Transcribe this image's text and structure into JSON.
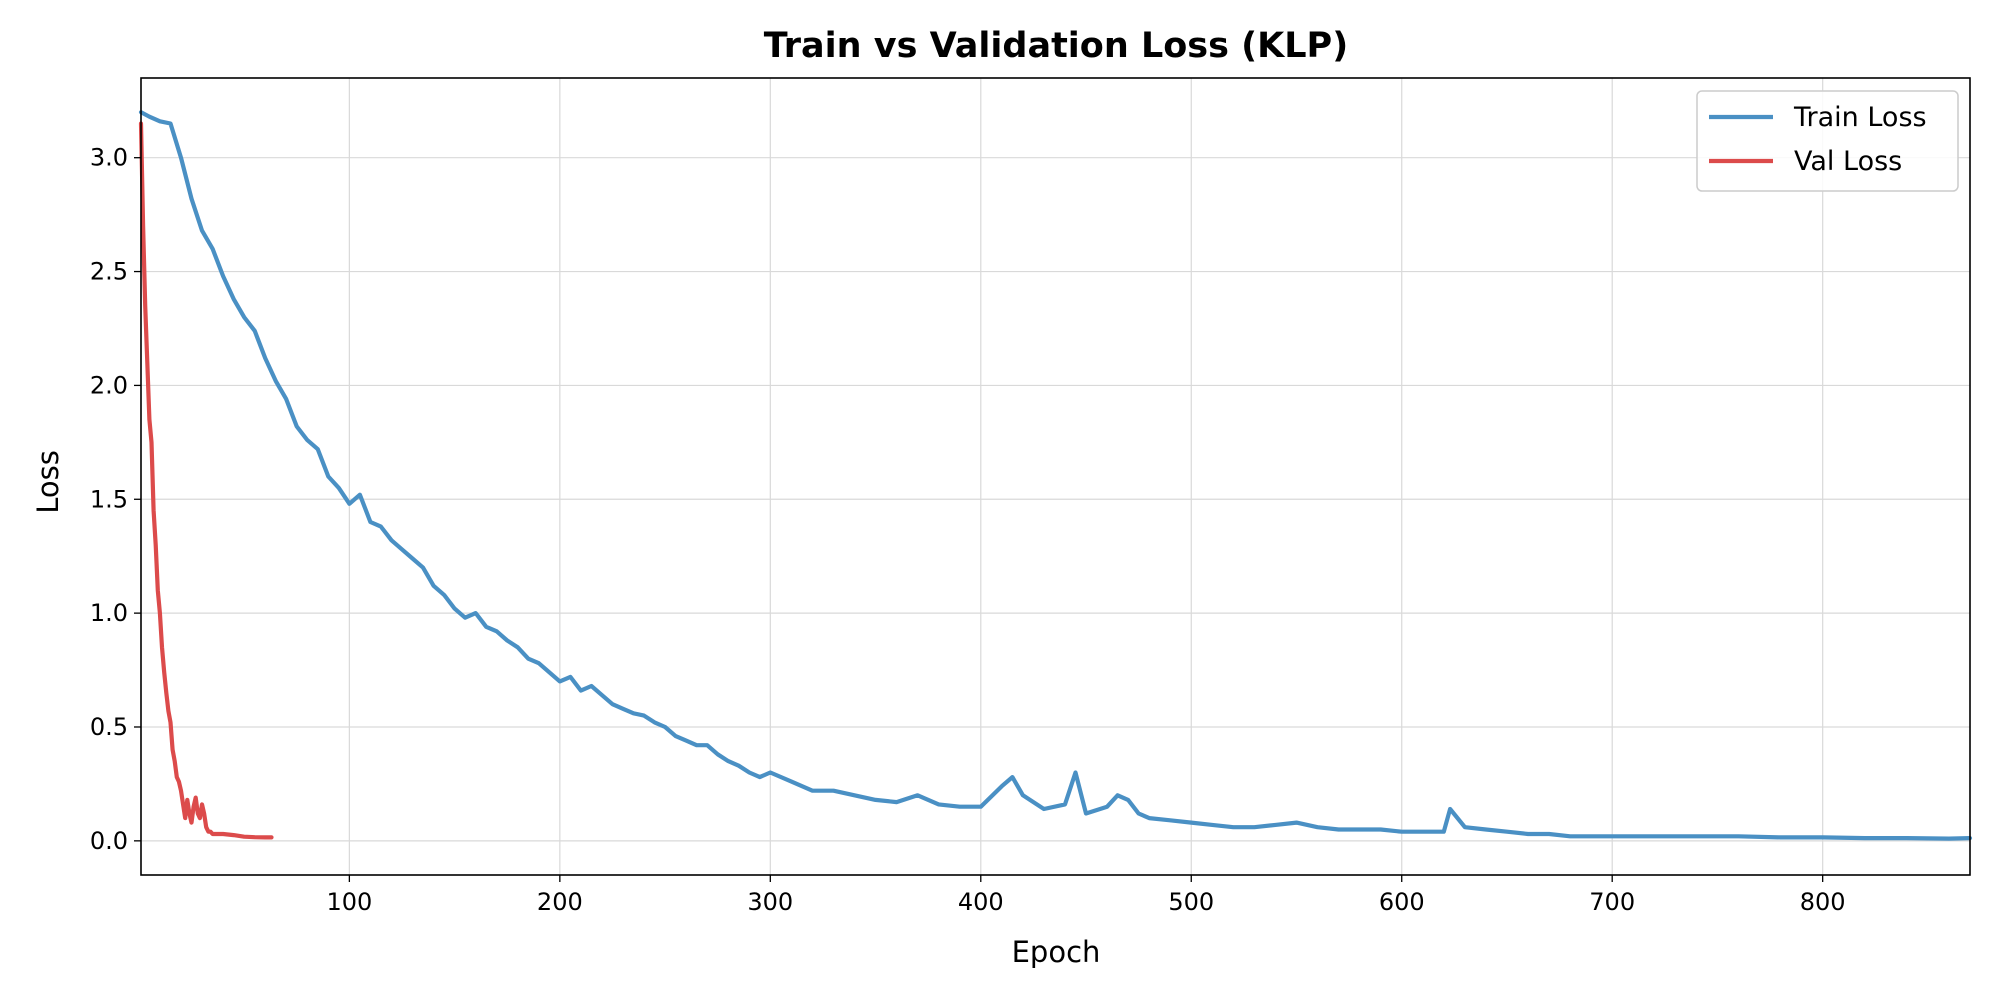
{
  "chart_data": {
    "type": "line",
    "title": "Train vs Validation Loss (KLP)",
    "xlabel": "Epoch",
    "ylabel": "Loss",
    "xlim": [
      1,
      870
    ],
    "ylim": [
      -0.15,
      3.35
    ],
    "xticks": [
      100,
      200,
      300,
      400,
      500,
      600,
      700,
      800
    ],
    "yticks": [
      0.0,
      0.5,
      1.0,
      1.5,
      2.0,
      2.5,
      3.0
    ],
    "xtick_labels": [
      "100",
      "200",
      "300",
      "400",
      "500",
      "600",
      "700",
      "800"
    ],
    "ytick_labels": [
      "0.0",
      "0.5",
      "1.0",
      "1.5",
      "2.0",
      "2.5",
      "3.0"
    ],
    "grid": true,
    "legend_position": "top-right",
    "series": [
      {
        "name": "Train Loss",
        "color": "#4a90c4",
        "x": [
          1,
          5,
          10,
          15,
          20,
          25,
          30,
          35,
          40,
          45,
          50,
          55,
          60,
          65,
          70,
          75,
          80,
          85,
          90,
          95,
          100,
          105,
          110,
          115,
          120,
          125,
          130,
          135,
          140,
          145,
          150,
          155,
          160,
          165,
          170,
          175,
          180,
          185,
          190,
          195,
          200,
          205,
          210,
          215,
          220,
          225,
          230,
          235,
          240,
          245,
          250,
          255,
          260,
          265,
          270,
          275,
          280,
          285,
          290,
          295,
          300,
          310,
          320,
          330,
          340,
          350,
          360,
          370,
          380,
          390,
          400,
          410,
          415,
          420,
          430,
          440,
          445,
          450,
          460,
          465,
          470,
          475,
          480,
          490,
          500,
          510,
          520,
          530,
          540,
          550,
          560,
          570,
          580,
          590,
          600,
          610,
          620,
          623,
          630,
          640,
          650,
          660,
          670,
          680,
          690,
          700,
          720,
          740,
          760,
          780,
          800,
          820,
          840,
          860,
          870
        ],
        "values": [
          3.2,
          3.18,
          3.16,
          3.15,
          3.0,
          2.82,
          2.68,
          2.6,
          2.48,
          2.38,
          2.3,
          2.24,
          2.12,
          2.02,
          1.94,
          1.82,
          1.76,
          1.72,
          1.6,
          1.55,
          1.48,
          1.52,
          1.4,
          1.38,
          1.32,
          1.28,
          1.24,
          1.2,
          1.12,
          1.08,
          1.02,
          0.98,
          1.0,
          0.94,
          0.92,
          0.88,
          0.85,
          0.8,
          0.78,
          0.74,
          0.7,
          0.72,
          0.66,
          0.68,
          0.64,
          0.6,
          0.58,
          0.56,
          0.55,
          0.52,
          0.5,
          0.46,
          0.44,
          0.42,
          0.42,
          0.38,
          0.35,
          0.33,
          0.3,
          0.28,
          0.3,
          0.26,
          0.22,
          0.22,
          0.2,
          0.18,
          0.17,
          0.2,
          0.16,
          0.15,
          0.15,
          0.24,
          0.28,
          0.2,
          0.14,
          0.16,
          0.3,
          0.12,
          0.15,
          0.2,
          0.18,
          0.12,
          0.1,
          0.09,
          0.08,
          0.07,
          0.06,
          0.06,
          0.07,
          0.08,
          0.06,
          0.05,
          0.05,
          0.05,
          0.04,
          0.04,
          0.04,
          0.14,
          0.06,
          0.05,
          0.04,
          0.03,
          0.03,
          0.02,
          0.02,
          0.02,
          0.02,
          0.02,
          0.02,
          0.015,
          0.015,
          0.012,
          0.012,
          0.01,
          0.012
        ]
      },
      {
        "name": "Val Loss",
        "color": "#dc4b4b",
        "x": [
          1,
          2,
          3,
          4,
          5,
          6,
          7,
          8,
          9,
          10,
          11,
          12,
          13,
          14,
          15,
          16,
          17,
          18,
          19,
          20,
          21,
          22,
          23,
          24,
          25,
          26,
          27,
          28,
          29,
          30,
          31,
          32,
          33,
          34,
          35,
          40,
          45,
          50,
          55,
          60,
          63
        ],
        "values": [
          3.15,
          2.7,
          2.35,
          2.1,
          1.85,
          1.75,
          1.45,
          1.3,
          1.1,
          1.0,
          0.85,
          0.74,
          0.65,
          0.57,
          0.52,
          0.4,
          0.35,
          0.28,
          0.26,
          0.22,
          0.16,
          0.1,
          0.18,
          0.12,
          0.08,
          0.15,
          0.19,
          0.12,
          0.1,
          0.16,
          0.12,
          0.06,
          0.04,
          0.04,
          0.03,
          0.03,
          0.025,
          0.018,
          0.016,
          0.015,
          0.015
        ]
      }
    ]
  }
}
